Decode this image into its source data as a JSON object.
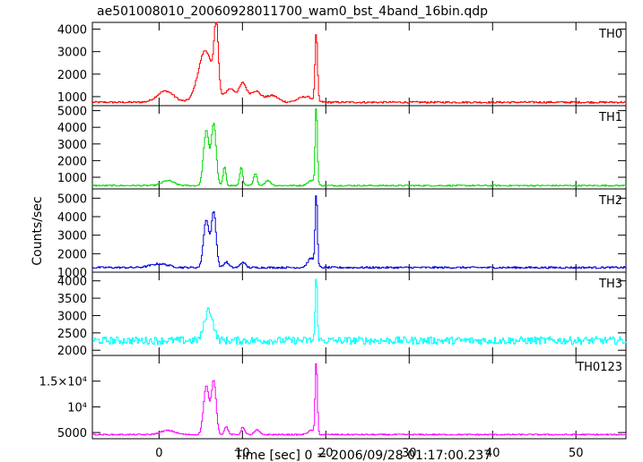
{
  "chart_data": {
    "type": "line",
    "title": "ae501008010_20060928011700_wam0_bst_4band_16bin.qdp",
    "xlabel": "Time [sec] 0 = 2006/09/28 01:17:00.237",
    "ylabel": "Counts/sec",
    "xlim": [
      -8,
      56
    ],
    "xticks": [
      0,
      10,
      20,
      30,
      40,
      50
    ],
    "grid": false,
    "panels": [
      {
        "name": "TH0",
        "color": "#ff0000",
        "ylim": [
          600,
          4300
        ],
        "yticks": [
          1000,
          2000,
          3000,
          4000
        ],
        "ytick_labels": [
          "1000",
          "2000",
          "3000",
          "4000"
        ],
        "baseline": 750,
        "noise": 40,
        "bumps": [
          [
            0.7,
            500,
            1.4
          ],
          [
            5.5,
            2300,
            1.2
          ],
          [
            6.8,
            3000,
            0.35
          ],
          [
            8.5,
            600,
            0.9
          ],
          [
            10.0,
            800,
            0.6
          ],
          [
            11.5,
            500,
            0.9
          ],
          [
            13.5,
            300,
            1.0
          ],
          [
            17.5,
            250,
            1.2
          ]
        ],
        "spike": [
          18.8,
          3000,
          0.2
        ]
      },
      {
        "name": "TH1",
        "color": "#00dd00",
        "ylim": [
          300,
          5300
        ],
        "yticks": [
          1000,
          2000,
          3000,
          4000,
          5000
        ],
        "ytick_labels": [
          "1000",
          "2000",
          "3000",
          "4000",
          "5000"
        ],
        "baseline": 500,
        "noise": 40,
        "bumps": [
          [
            1.0,
            300,
            1.0
          ],
          [
            5.6,
            3300,
            0.45
          ],
          [
            6.5,
            3700,
            0.4
          ],
          [
            7.8,
            1100,
            0.25
          ],
          [
            9.8,
            1100,
            0.25
          ],
          [
            11.5,
            700,
            0.3
          ],
          [
            13.0,
            300,
            0.5
          ],
          [
            18.2,
            300,
            0.6
          ]
        ],
        "spike": [
          18.8,
          4700,
          0.18
        ]
      },
      {
        "name": "TH2",
        "color": "#0000dd",
        "ylim": [
          1000,
          5500
        ],
        "yticks": [
          1000,
          2000,
          3000,
          4000,
          5000
        ],
        "ytick_labels": [
          "1000",
          "2000",
          "3000",
          "4000",
          "5000"
        ],
        "baseline": 1250,
        "noise": 50,
        "bumps": [
          [
            0.0,
            200,
            1.5
          ],
          [
            5.6,
            2600,
            0.45
          ],
          [
            6.5,
            3000,
            0.4
          ],
          [
            8.0,
            300,
            0.4
          ],
          [
            10.0,
            300,
            0.4
          ],
          [
            18.2,
            500,
            0.6
          ]
        ],
        "spike": [
          18.8,
          3900,
          0.18
        ]
      },
      {
        "name": "TH3",
        "color": "#00ffff",
        "ylim": [
          1850,
          4250
        ],
        "yticks": [
          2000,
          2500,
          3000,
          3500,
          4000
        ],
        "ytick_labels": [
          "2000",
          "2500",
          "3000",
          "3500",
          "4000"
        ],
        "baseline": 2280,
        "noise": 110,
        "bumps": [
          [
            5.9,
            900,
            0.7
          ]
        ],
        "spike": [
          18.8,
          1800,
          0.18
        ]
      },
      {
        "name": "TH0123",
        "color": "#ff00ff",
        "ylim": [
          3800,
          20000
        ],
        "yticks": [
          5000,
          10000,
          15000
        ],
        "ytick_labels": [
          "5000",
          "10⁴",
          "1.5×10⁴"
        ],
        "baseline": 4600,
        "noise": 120,
        "bumps": [
          [
            1.0,
            800,
            1.2
          ],
          [
            5.6,
            9500,
            0.45
          ],
          [
            6.5,
            10500,
            0.4
          ],
          [
            8.0,
            1600,
            0.3
          ],
          [
            10.0,
            1500,
            0.3
          ],
          [
            11.7,
            900,
            0.4
          ],
          [
            18.2,
            800,
            0.6
          ]
        ],
        "spike": [
          18.8,
          14000,
          0.18
        ]
      }
    ]
  }
}
